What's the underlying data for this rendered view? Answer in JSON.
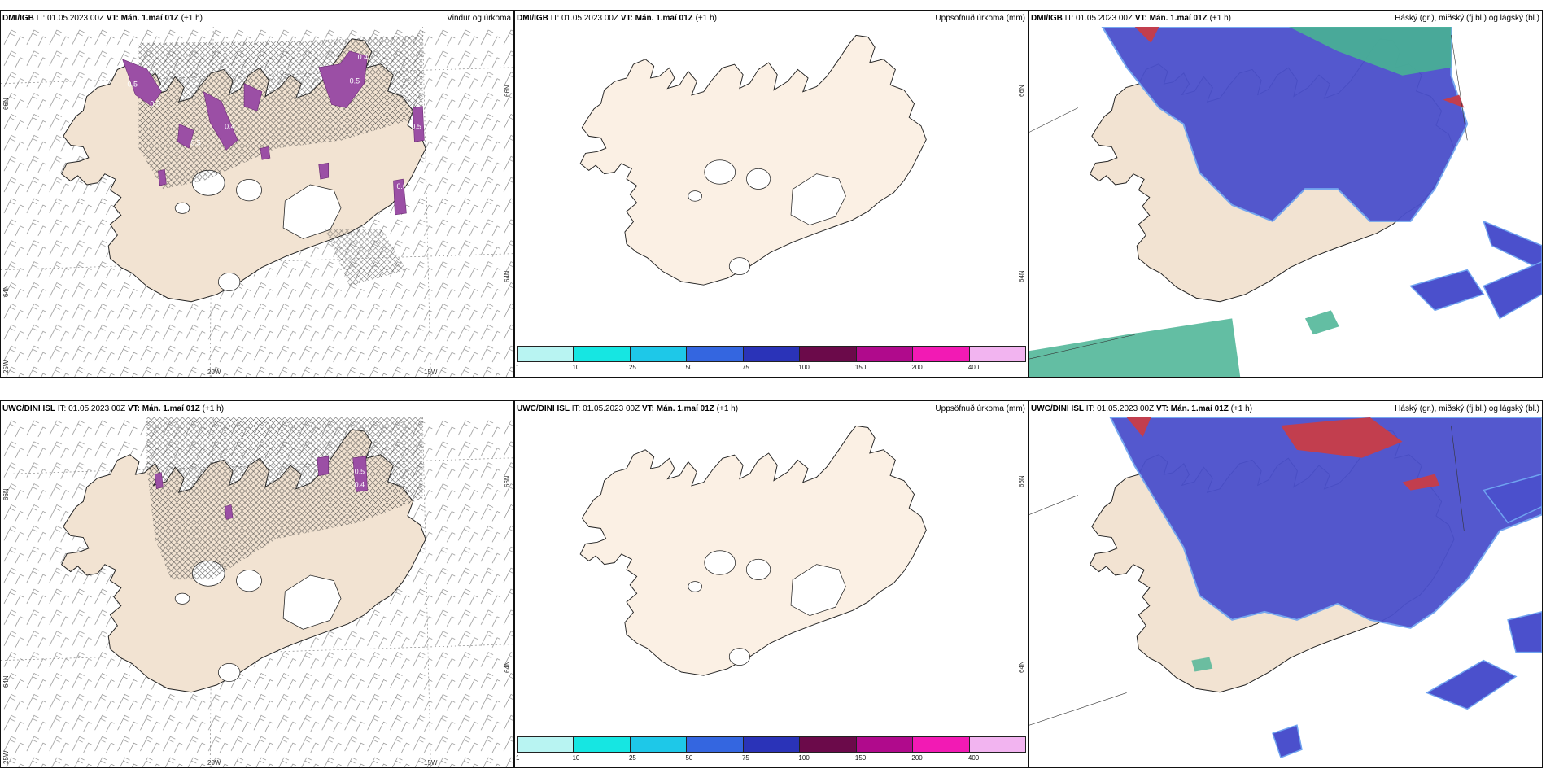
{
  "colors": {
    "land": "#f2e3d2",
    "land_light": "#fbf0e4",
    "coast": "#222222",
    "precip": "#9b4fa5",
    "high_cloud": "#c23e4e",
    "mid_cloud": "#4b50cc",
    "mid_cloud_edge": "#6fa3f0",
    "low_cloud": "#48b393"
  },
  "panels": [
    {
      "model": "DMI/IGB",
      "it_label": "IT:",
      "it": "01.05.2023 00Z",
      "vt_label": "VT:",
      "vt": "Mán. 1.maí 01Z",
      "lead": "(+1 h)",
      "field": "Vindur og úrkoma",
      "precip_labels": [
        "0.4",
        "0.5",
        "0.5",
        "0.5",
        "0.5",
        "0.4",
        "0.5",
        "0.6"
      ]
    },
    {
      "model": "DMI/IGB",
      "it_label": "IT:",
      "it": "01.05.2023 00Z",
      "vt_label": "VT:",
      "vt": "Mán. 1.maí 01Z",
      "lead": "(+1 h)",
      "field": "Uppsöfnuð úrkoma (mm)"
    },
    {
      "model": "DMI/IGB",
      "it_label": "IT:",
      "it": "01.05.2023 00Z",
      "vt_label": "VT:",
      "vt": "Mán. 1.maí 01Z",
      "lead": "(+1 h)",
      "field": "Háský (gr.), miðský (fj.bl.) og lágský (bl.)"
    },
    {
      "model": "UWC/DINI ISL",
      "it_label": "IT:",
      "it": "01.05.2023 00Z",
      "vt_label": "VT:",
      "vt": "Mán. 1.maí 01Z",
      "lead": "(+1 h)",
      "field": "",
      "precip_labels": [
        "0.5",
        "0.4"
      ]
    },
    {
      "model": "UWC/DINI ISL",
      "it_label": "IT:",
      "it": "01.05.2023 00Z",
      "vt_label": "VT:",
      "vt": "Mán. 1.maí 01Z",
      "lead": "(+1 h)",
      "field": "Uppsöfnuð úrkoma (mm)"
    },
    {
      "model": "UWC/DINI ISL",
      "it_label": "IT:",
      "it": "01.05.2023 00Z",
      "vt_label": "VT:",
      "vt": "Mán. 1.maí 01Z",
      "lead": "(+1 h)",
      "field": "Háský (gr.), miðský (fj.bl.) og lágský (bl.)"
    }
  ],
  "axes": {
    "lat_66": "66N",
    "lat_64": "64N",
    "lon_20": "20W",
    "lon_15": "15W",
    "lon_25": "25W"
  },
  "colorbar": {
    "ticks": [
      "1",
      "10",
      "25",
      "50",
      "75",
      "100",
      "150",
      "200",
      "400"
    ],
    "colors": [
      "#b8f4f2",
      "#16e6e2",
      "#1ec8e8",
      "#3466e0",
      "#2a33b8",
      "#6b0a4a",
      "#b00a8c",
      "#f21ab4",
      "#f2b4f0"
    ]
  }
}
